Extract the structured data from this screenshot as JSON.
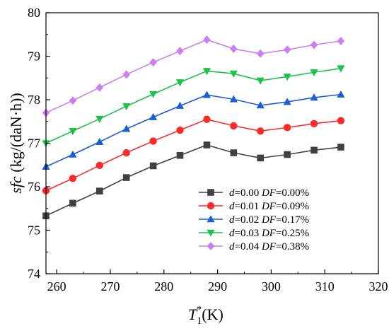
{
  "chart_data": {
    "type": "line",
    "x": [
      258,
      263,
      268,
      273,
      278,
      283,
      288,
      293,
      298,
      303,
      308,
      313
    ],
    "xlim": [
      258,
      320
    ],
    "ylim": [
      74,
      80
    ],
    "xticks": [
      260,
      270,
      280,
      290,
      300,
      310,
      320
    ],
    "yticks": [
      74,
      75,
      76,
      77,
      78,
      79,
      80
    ],
    "ylabel_parts": {
      "italic": "sfc",
      "rest": " (kg/(daN·h))"
    },
    "xlabel_parts": {
      "main": "T",
      "sub": "1",
      "sup": "*",
      "rest": "(K)"
    },
    "legend_position": "bottom-right",
    "series": [
      {
        "name": "d=0.00 DF=0.00%",
        "d": "0.00",
        "df": "0.00%",
        "color": "#404040",
        "marker": "square",
        "values": [
          75.33,
          75.62,
          75.9,
          76.21,
          76.48,
          76.72,
          76.96,
          76.78,
          76.66,
          76.74,
          76.84,
          76.91
        ]
      },
      {
        "name": "d=0.01 DF=0.09%",
        "d": "0.01",
        "df": "0.09%",
        "color": "#ff2a2a",
        "marker": "circle",
        "values": [
          75.91,
          76.19,
          76.49,
          76.78,
          77.05,
          77.3,
          77.55,
          77.4,
          77.28,
          77.36,
          77.45,
          77.52
        ]
      },
      {
        "name": "d=0.02 DF=0.17%",
        "d": "0.02",
        "df": "0.17%",
        "color": "#1a5fd6",
        "marker": "triangle-up",
        "values": [
          76.46,
          76.74,
          77.03,
          77.33,
          77.6,
          77.86,
          78.11,
          78.01,
          77.87,
          77.95,
          78.05,
          78.12
        ]
      },
      {
        "name": "d=0.03 DF=0.25%",
        "d": "0.03",
        "df": "0.25%",
        "color": "#1ec24a",
        "marker": "triangle-down",
        "values": [
          77.0,
          77.28,
          77.56,
          77.85,
          78.13,
          78.4,
          78.66,
          78.6,
          78.44,
          78.53,
          78.63,
          78.72
        ]
      },
      {
        "name": "d=0.04 DF=0.38%",
        "d": "0.04",
        "df": "0.38%",
        "color": "#cc7ff0",
        "marker": "diamond",
        "values": [
          77.7,
          77.98,
          78.28,
          78.58,
          78.86,
          79.12,
          79.38,
          79.17,
          79.06,
          79.15,
          79.26,
          79.35
        ]
      }
    ]
  }
}
